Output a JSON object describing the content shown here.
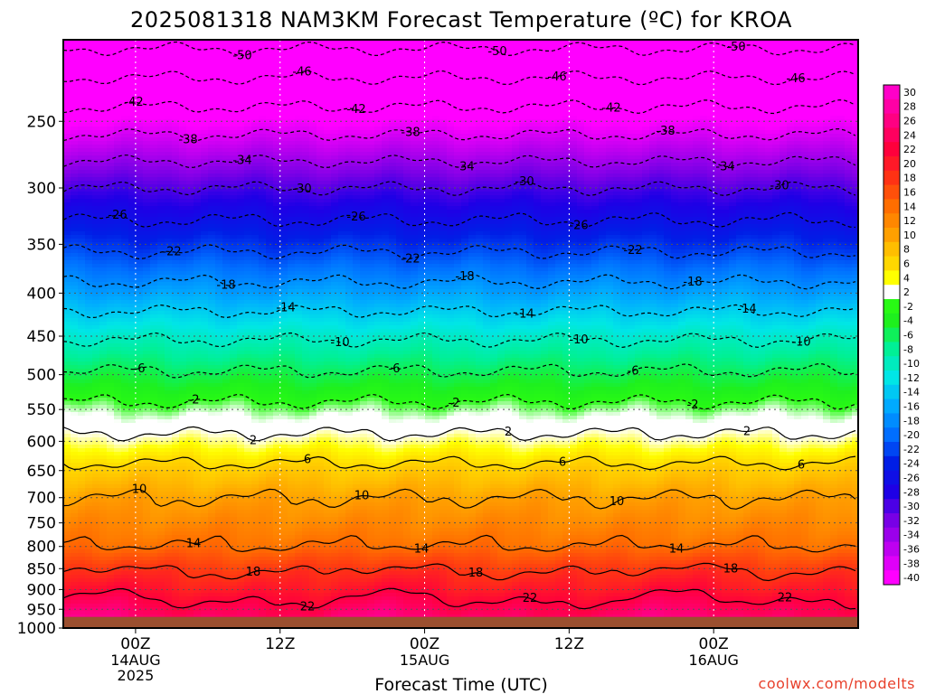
{
  "chart_data": {
    "type": "heatmap",
    "title": "2025081318 NAM3KM Forecast Temperature (ºC) for KROA",
    "xlabel": "Forecast Time (UTC)",
    "ylabel": "",
    "credit": "coolwx.com/modelts",
    "pressure_levels": [
      1000,
      950,
      900,
      850,
      800,
      750,
      700,
      650,
      600,
      550,
      500,
      450,
      400,
      350,
      300,
      250
    ],
    "ylim": [
      1000,
      200
    ],
    "y_scale": "log",
    "x_hours": [
      -6,
      60
    ],
    "x_ticks": [
      {
        "hour": 0,
        "label": "00Z",
        "date": "14AUG",
        "year": "2025"
      },
      {
        "hour": 12,
        "label": "12Z",
        "date": "",
        "year": ""
      },
      {
        "hour": 24,
        "label": "00Z",
        "date": "15AUG",
        "year": ""
      },
      {
        "hour": 36,
        "label": "12Z",
        "date": "",
        "year": ""
      },
      {
        "hour": 48,
        "label": "00Z",
        "date": "16AUG",
        "year": ""
      }
    ],
    "surface_pressure": 970,
    "contour_interval": 4,
    "profile": [
      [
        970,
        24
      ],
      [
        950,
        23
      ],
      [
        900,
        20
      ],
      [
        850,
        17.5
      ],
      [
        800,
        14
      ],
      [
        750,
        12
      ],
      [
        700,
        10
      ],
      [
        650,
        7
      ],
      [
        600,
        3
      ],
      [
        575,
        1
      ],
      [
        550,
        -1
      ],
      [
        500,
        -5.5
      ],
      [
        450,
        -10.5
      ],
      [
        400,
        -16.5
      ],
      [
        350,
        -23
      ],
      [
        300,
        -30
      ],
      [
        250,
        -40
      ],
      [
        205,
        -50
      ]
    ],
    "colorbar": {
      "labels": [
        "30",
        "28",
        "26",
        "24",
        "22",
        "20",
        "18",
        "16",
        "14",
        "12",
        "10",
        "8",
        "6",
        "4",
        "2",
        "-2",
        "-4",
        "-6",
        "-8",
        "-10",
        "-12",
        "-14",
        "-16",
        "-18",
        "-20",
        "-22",
        "-24",
        "-26",
        "-28",
        "-30",
        "-32",
        "-34",
        "-36",
        "-38",
        "-40"
      ]
    },
    "contours": [
      {
        "value": -50,
        "label": "-50"
      },
      {
        "value": -46,
        "label": "-46"
      },
      {
        "value": -42,
        "label": "-42"
      },
      {
        "value": -38,
        "label": "-38"
      },
      {
        "value": -34,
        "label": "-34"
      },
      {
        "value": -30,
        "label": "-30"
      },
      {
        "value": -26,
        "label": "-26"
      },
      {
        "value": -22,
        "label": "-22"
      },
      {
        "value": -18,
        "label": "-18"
      },
      {
        "value": -14,
        "label": "-14"
      },
      {
        "value": -10,
        "label": "-10"
      },
      {
        "value": -6,
        "label": "-6"
      },
      {
        "value": -2,
        "label": "-2"
      },
      {
        "value": 2,
        "label": "2"
      },
      {
        "value": 6,
        "label": "6"
      },
      {
        "value": 10,
        "label": "10"
      },
      {
        "value": 14,
        "label": "14"
      },
      {
        "value": 18,
        "label": "18"
      },
      {
        "value": 22,
        "label": "22"
      }
    ],
    "grid": true
  }
}
